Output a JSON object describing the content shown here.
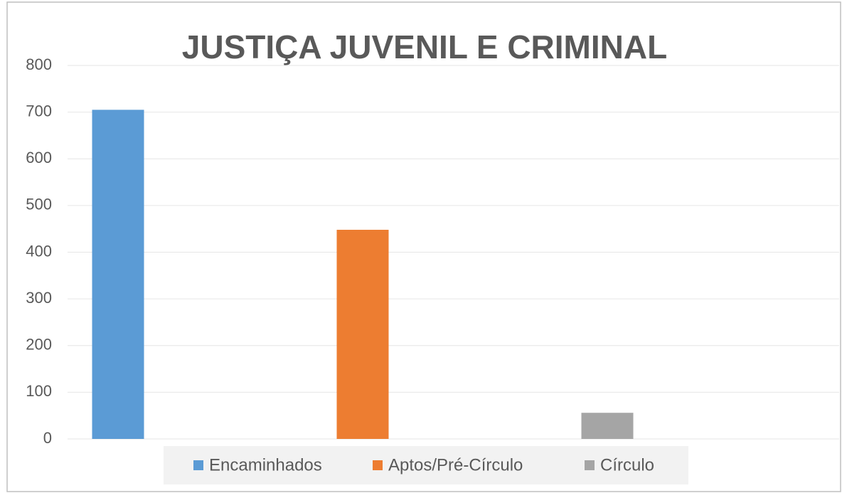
{
  "chart_data": {
    "type": "bar",
    "title": "JUSTIÇA JUVENIL E CRIMINAL",
    "series": [
      {
        "name": "Encaminhados",
        "color": "#5b9bd5",
        "values": [
          705
        ]
      },
      {
        "name": "Aptos/Pré-Círculo",
        "color": "#ed7d31",
        "values": [
          448
        ]
      },
      {
        "name": "Círculo",
        "color": "#a5a5a5",
        "values": [
          56
        ]
      }
    ],
    "ylim": [
      0,
      800
    ],
    "yticks": [
      0,
      100,
      200,
      300,
      400,
      500,
      600,
      700,
      800
    ],
    "grid": true,
    "legend": "bottom"
  }
}
